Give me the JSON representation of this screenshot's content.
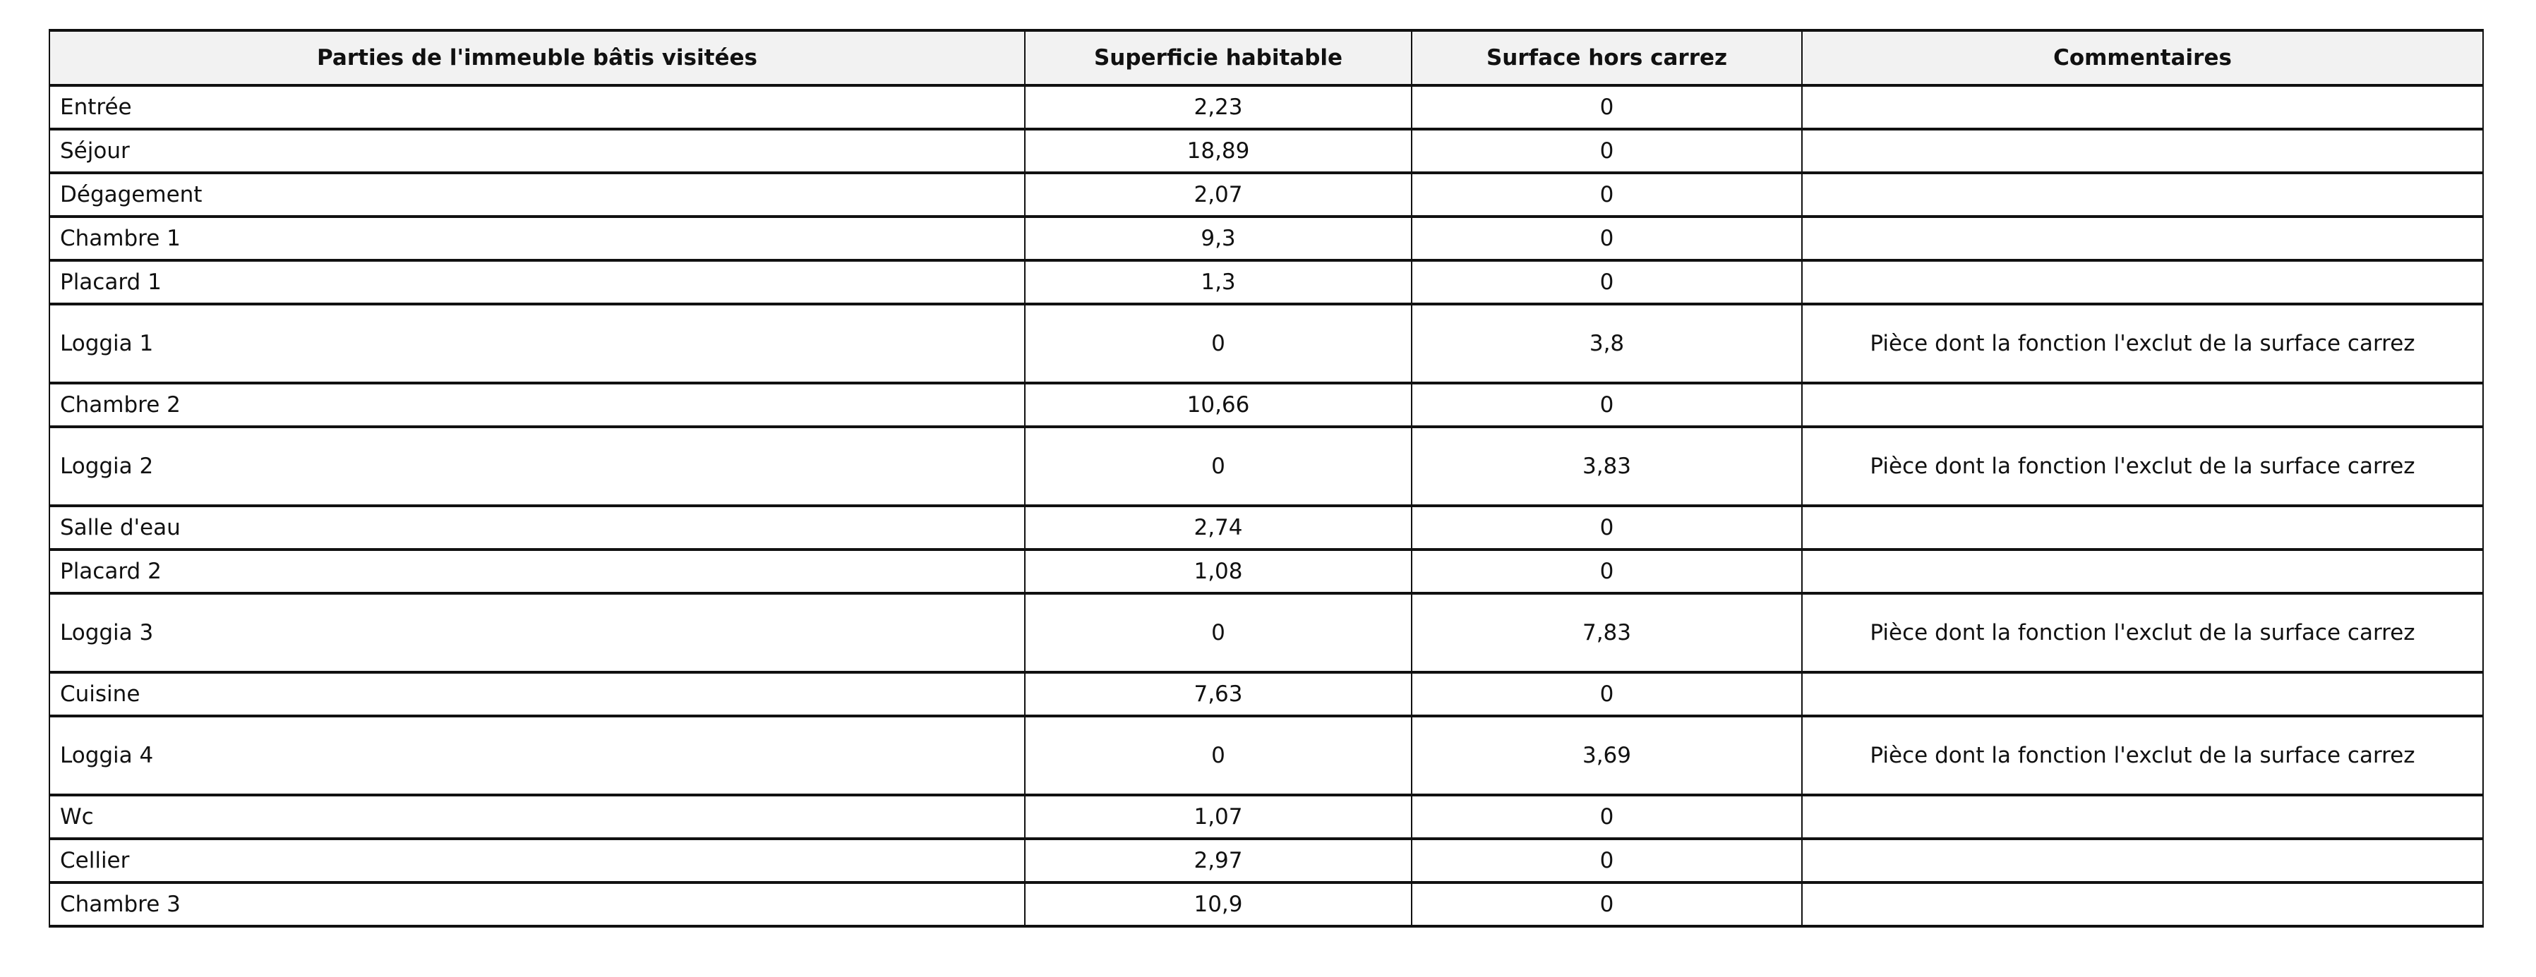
{
  "table": {
    "headers": [
      "Parties de l'immeuble bâtis visitées",
      "Superficie habitable",
      "Surface hors carrez",
      "Commentaires"
    ],
    "rows": [
      {
        "part": "Entrée",
        "habitable": "2,23",
        "hors_carrez": "0",
        "comment": ""
      },
      {
        "part": "Séjour",
        "habitable": "18,89",
        "hors_carrez": "0",
        "comment": ""
      },
      {
        "part": "Dégagement",
        "habitable": "2,07",
        "hors_carrez": "0",
        "comment": ""
      },
      {
        "part": "Chambre 1",
        "habitable": "9,3",
        "hors_carrez": "0",
        "comment": ""
      },
      {
        "part": "Placard 1",
        "habitable": "1,3",
        "hors_carrez": "0",
        "comment": ""
      },
      {
        "part": "Loggia 1",
        "habitable": "0",
        "hors_carrez": "3,8",
        "comment": "Pièce dont la fonction l'exclut de la surface carrez"
      },
      {
        "part": "Chambre 2",
        "habitable": "10,66",
        "hors_carrez": "0",
        "comment": ""
      },
      {
        "part": "Loggia 2",
        "habitable": "0",
        "hors_carrez": "3,83",
        "comment": "Pièce dont la fonction l'exclut de la surface carrez"
      },
      {
        "part": "Salle d'eau",
        "habitable": "2,74",
        "hors_carrez": "0",
        "comment": ""
      },
      {
        "part": "Placard 2",
        "habitable": "1,08",
        "hors_carrez": "0",
        "comment": ""
      },
      {
        "part": "Loggia 3",
        "habitable": "0",
        "hors_carrez": "7,83",
        "comment": "Pièce dont la fonction l'exclut de la surface carrez"
      },
      {
        "part": "Cuisine",
        "habitable": "7,63",
        "hors_carrez": "0",
        "comment": ""
      },
      {
        "part": "Loggia 4",
        "habitable": "0",
        "hors_carrez": "3,69",
        "comment": "Pièce dont la fonction l'exclut de la surface carrez"
      },
      {
        "part": "Wc",
        "habitable": "1,07",
        "hors_carrez": "0",
        "comment": ""
      },
      {
        "part": "Cellier",
        "habitable": "2,97",
        "hors_carrez": "0",
        "comment": ""
      },
      {
        "part": "Chambre 3",
        "habitable": "10,9",
        "hors_carrez": "0",
        "comment": ""
      }
    ]
  }
}
